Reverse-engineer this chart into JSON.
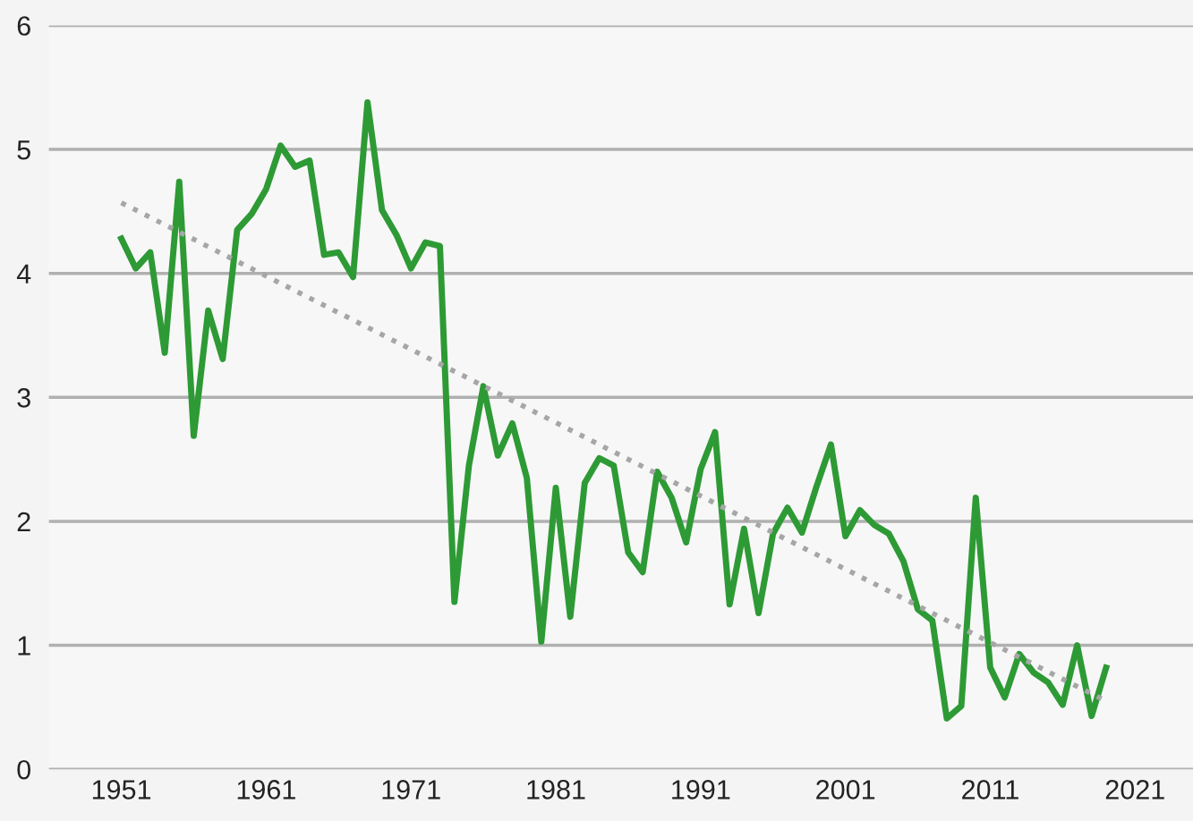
{
  "chart_data": {
    "type": "line",
    "x": [
      1951,
      1952,
      1953,
      1954,
      1955,
      1956,
      1957,
      1958,
      1959,
      1960,
      1961,
      1962,
      1963,
      1964,
      1965,
      1966,
      1967,
      1968,
      1969,
      1970,
      1971,
      1972,
      1973,
      1974,
      1975,
      1976,
      1977,
      1978,
      1979,
      1980,
      1981,
      1982,
      1983,
      1984,
      1985,
      1986,
      1987,
      1988,
      1989,
      1990,
      1991,
      1992,
      1993,
      1994,
      1995,
      1996,
      1997,
      1998,
      1999,
      2000,
      2001,
      2002,
      2003,
      2004,
      2005,
      2006,
      2007,
      2008,
      2009,
      2010,
      2011,
      2012,
      2013,
      2014,
      2015,
      2016,
      2017,
      2018,
      2019
    ],
    "series": [
      {
        "color": "#2e9a35",
        "line_style": "solid",
        "values": [
          4.28,
          4.04,
          4.17,
          3.36,
          4.74,
          2.69,
          3.7,
          3.31,
          4.35,
          4.48,
          4.68,
          5.03,
          4.86,
          4.91,
          4.15,
          4.17,
          3.97,
          5.38,
          4.51,
          4.31,
          4.04,
          4.25,
          4.22,
          1.35,
          2.45,
          3.09,
          2.53,
          2.79,
          2.35,
          1.03,
          2.27,
          1.23,
          2.31,
          2.51,
          2.45,
          1.75,
          1.59,
          2.4,
          2.19,
          1.83,
          2.42,
          2.72,
          1.33,
          1.94,
          1.26,
          1.9,
          2.11,
          1.91,
          2.28,
          2.62,
          1.88,
          2.09,
          1.97,
          1.9,
          1.68,
          1.29,
          1.2,
          0.41,
          0.51,
          2.19,
          0.82,
          0.58,
          0.93,
          0.78,
          0.7,
          0.52,
          1.0,
          0.43,
          0.82
        ]
      },
      {
        "type": "line",
        "color": "#a6a6a6",
        "line_style": "dotted",
        "x": [
          1951,
          2019
        ],
        "values": [
          4.57,
          0.55
        ]
      }
    ],
    "xlim": [
      1946,
      2025
    ],
    "xticks": [
      1951,
      1961,
      1971,
      1981,
      1991,
      2001,
      2011,
      2021
    ],
    "ylim": [
      0,
      6
    ],
    "yticks": [
      0,
      1,
      2,
      3,
      4,
      5,
      6
    ],
    "grid": "y",
    "legend": false,
    "marker": "none"
  }
}
